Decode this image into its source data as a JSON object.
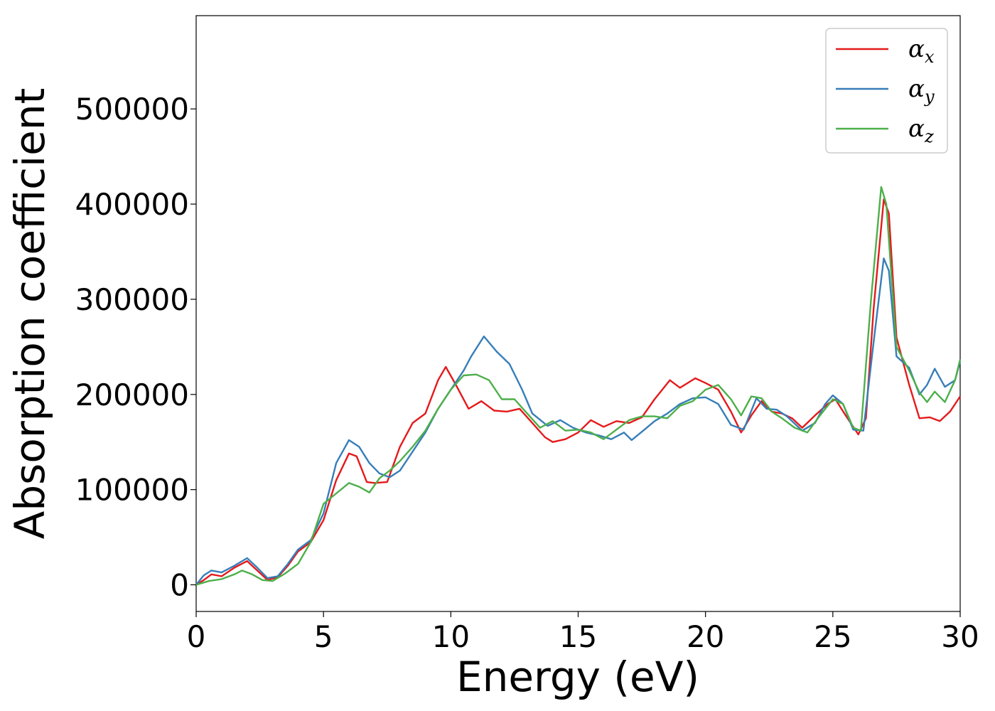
{
  "chart_data": {
    "type": "line",
    "title": "",
    "xlabel": "Energy (eV)",
    "ylabel": "Absorption coefficient",
    "xlim": [
      0,
      30
    ],
    "ylim": [
      -28000,
      598000
    ],
    "xticks": [
      0,
      5,
      10,
      15,
      20,
      25,
      30
    ],
    "yticks": [
      0,
      100000,
      200000,
      300000,
      400000,
      500000
    ],
    "xtick_labels": [
      "0",
      "5",
      "10",
      "15",
      "20",
      "25",
      "30"
    ],
    "ytick_labels": [
      "0",
      "100000",
      "200000",
      "300000",
      "400000",
      "500000"
    ],
    "grid": false,
    "legend_position": "top-right",
    "series": [
      {
        "name": "α",
        "subscript": "x",
        "color": "#e41a1c",
        "points": [
          [
            0,
            0
          ],
          [
            0.3,
            5000
          ],
          [
            0.6,
            11000
          ],
          [
            1,
            9000
          ],
          [
            1.5,
            18000
          ],
          [
            2,
            25000
          ],
          [
            2.4,
            15000
          ],
          [
            2.8,
            5000
          ],
          [
            3.2,
            8000
          ],
          [
            3.6,
            20000
          ],
          [
            4,
            35000
          ],
          [
            4.5,
            45000
          ],
          [
            5,
            68000
          ],
          [
            5.5,
            110000
          ],
          [
            6,
            138000
          ],
          [
            6.3,
            135000
          ],
          [
            6.7,
            108000
          ],
          [
            7,
            107000
          ],
          [
            7.5,
            108000
          ],
          [
            8,
            145000
          ],
          [
            8.5,
            170000
          ],
          [
            9,
            180000
          ],
          [
            9.5,
            215000
          ],
          [
            9.8,
            229000
          ],
          [
            10.2,
            210000
          ],
          [
            10.7,
            185000
          ],
          [
            11.2,
            193000
          ],
          [
            11.7,
            183000
          ],
          [
            12.2,
            182000
          ],
          [
            12.7,
            185000
          ],
          [
            13.2,
            170000
          ],
          [
            13.7,
            155000
          ],
          [
            14,
            150000
          ],
          [
            14.5,
            153000
          ],
          [
            15,
            160000
          ],
          [
            15.5,
            173000
          ],
          [
            16,
            166000
          ],
          [
            16.5,
            172000
          ],
          [
            17,
            170000
          ],
          [
            17.5,
            176000
          ],
          [
            18,
            195000
          ],
          [
            18.6,
            215000
          ],
          [
            19,
            207000
          ],
          [
            19.6,
            217000
          ],
          [
            20,
            212000
          ],
          [
            20.5,
            205000
          ],
          [
            21,
            182000
          ],
          [
            21.4,
            160000
          ],
          [
            21.8,
            178000
          ],
          [
            22.2,
            193000
          ],
          [
            22.6,
            182000
          ],
          [
            23,
            180000
          ],
          [
            23.4,
            175000
          ],
          [
            23.8,
            165000
          ],
          [
            24.3,
            178000
          ],
          [
            24.8,
            190000
          ],
          [
            25.1,
            195000
          ],
          [
            25.5,
            178000
          ],
          [
            26,
            158000
          ],
          [
            26.3,
            175000
          ],
          [
            26.6,
            290000
          ],
          [
            27,
            405000
          ],
          [
            27.2,
            390000
          ],
          [
            27.5,
            260000
          ],
          [
            28,
            210000
          ],
          [
            28.4,
            175000
          ],
          [
            28.8,
            176000
          ],
          [
            29.2,
            172000
          ],
          [
            29.6,
            182000
          ],
          [
            30,
            198000
          ]
        ]
      },
      {
        "name": "α",
        "subscript": "y",
        "color": "#377eb8",
        "points": [
          [
            0,
            0
          ],
          [
            0.3,
            10000
          ],
          [
            0.6,
            15000
          ],
          [
            1,
            13000
          ],
          [
            1.5,
            20000
          ],
          [
            2,
            28000
          ],
          [
            2.4,
            18000
          ],
          [
            2.8,
            7000
          ],
          [
            3.2,
            9000
          ],
          [
            3.6,
            22000
          ],
          [
            4,
            37000
          ],
          [
            4.5,
            47000
          ],
          [
            5,
            75000
          ],
          [
            5.5,
            128000
          ],
          [
            6,
            152000
          ],
          [
            6.4,
            145000
          ],
          [
            6.8,
            128000
          ],
          [
            7.2,
            117000
          ],
          [
            7.6,
            113000
          ],
          [
            8,
            120000
          ],
          [
            8.5,
            140000
          ],
          [
            9,
            160000
          ],
          [
            9.5,
            185000
          ],
          [
            10,
            205000
          ],
          [
            10.5,
            225000
          ],
          [
            10.8,
            240000
          ],
          [
            11.3,
            261000
          ],
          [
            11.8,
            245000
          ],
          [
            12.3,
            232000
          ],
          [
            12.8,
            205000
          ],
          [
            13.2,
            180000
          ],
          [
            13.8,
            167000
          ],
          [
            14.3,
            173000
          ],
          [
            14.8,
            165000
          ],
          [
            15.3,
            160000
          ],
          [
            15.8,
            157000
          ],
          [
            16.3,
            153000
          ],
          [
            16.8,
            160000
          ],
          [
            17.1,
            152000
          ],
          [
            17.6,
            163000
          ],
          [
            18,
            172000
          ],
          [
            18.5,
            180000
          ],
          [
            19,
            190000
          ],
          [
            19.5,
            196000
          ],
          [
            20,
            197000
          ],
          [
            20.5,
            190000
          ],
          [
            21,
            168000
          ],
          [
            21.5,
            163000
          ],
          [
            22,
            196000
          ],
          [
            22.4,
            185000
          ],
          [
            22.8,
            184000
          ],
          [
            23.2,
            177000
          ],
          [
            23.8,
            162000
          ],
          [
            24.3,
            170000
          ],
          [
            24.7,
            190000
          ],
          [
            25,
            199000
          ],
          [
            25.4,
            190000
          ],
          [
            25.8,
            163000
          ],
          [
            26.2,
            162000
          ],
          [
            26.6,
            255000
          ],
          [
            27,
            343000
          ],
          [
            27.2,
            330000
          ],
          [
            27.5,
            240000
          ],
          [
            28,
            228000
          ],
          [
            28.4,
            200000
          ],
          [
            28.7,
            210000
          ],
          [
            29,
            227000
          ],
          [
            29.4,
            208000
          ],
          [
            29.8,
            215000
          ],
          [
            30,
            235000
          ]
        ]
      },
      {
        "name": "α",
        "subscript": "z",
        "color": "#4daf4a",
        "points": [
          [
            0,
            0
          ],
          [
            0.5,
            4000
          ],
          [
            1,
            6000
          ],
          [
            1.5,
            11000
          ],
          [
            1.8,
            15000
          ],
          [
            2.2,
            11000
          ],
          [
            2.6,
            5000
          ],
          [
            3,
            4000
          ],
          [
            3.5,
            12000
          ],
          [
            4,
            22000
          ],
          [
            4.5,
            45000
          ],
          [
            5,
            85000
          ],
          [
            5.5,
            96000
          ],
          [
            6,
            107000
          ],
          [
            6.4,
            103000
          ],
          [
            6.8,
            97000
          ],
          [
            7.2,
            112000
          ],
          [
            7.6,
            120000
          ],
          [
            8,
            130000
          ],
          [
            8.5,
            145000
          ],
          [
            9,
            162000
          ],
          [
            9.5,
            185000
          ],
          [
            10,
            205000
          ],
          [
            10.5,
            220000
          ],
          [
            11,
            221000
          ],
          [
            11.5,
            215000
          ],
          [
            12,
            195000
          ],
          [
            12.5,
            195000
          ],
          [
            13,
            180000
          ],
          [
            13.5,
            165000
          ],
          [
            14,
            172000
          ],
          [
            14.5,
            162000
          ],
          [
            15,
            163000
          ],
          [
            15.5,
            160000
          ],
          [
            16,
            153000
          ],
          [
            16.5,
            163000
          ],
          [
            17,
            173000
          ],
          [
            17.5,
            177000
          ],
          [
            18,
            177000
          ],
          [
            18.5,
            175000
          ],
          [
            19,
            188000
          ],
          [
            19.5,
            193000
          ],
          [
            20,
            205000
          ],
          [
            20.5,
            210000
          ],
          [
            21,
            195000
          ],
          [
            21.4,
            178000
          ],
          [
            21.8,
            198000
          ],
          [
            22.2,
            196000
          ],
          [
            22.6,
            182000
          ],
          [
            23,
            175000
          ],
          [
            23.5,
            165000
          ],
          [
            24,
            160000
          ],
          [
            24.5,
            178000
          ],
          [
            25,
            195000
          ],
          [
            25.4,
            190000
          ],
          [
            25.8,
            165000
          ],
          [
            26.1,
            162000
          ],
          [
            26.5,
            300000
          ],
          [
            26.9,
            418000
          ],
          [
            27.1,
            400000
          ],
          [
            27.5,
            250000
          ],
          [
            28,
            225000
          ],
          [
            28.4,
            202000
          ],
          [
            28.7,
            192000
          ],
          [
            29,
            203000
          ],
          [
            29.4,
            192000
          ],
          [
            29.8,
            215000
          ],
          [
            30,
            237000
          ]
        ]
      }
    ]
  }
}
